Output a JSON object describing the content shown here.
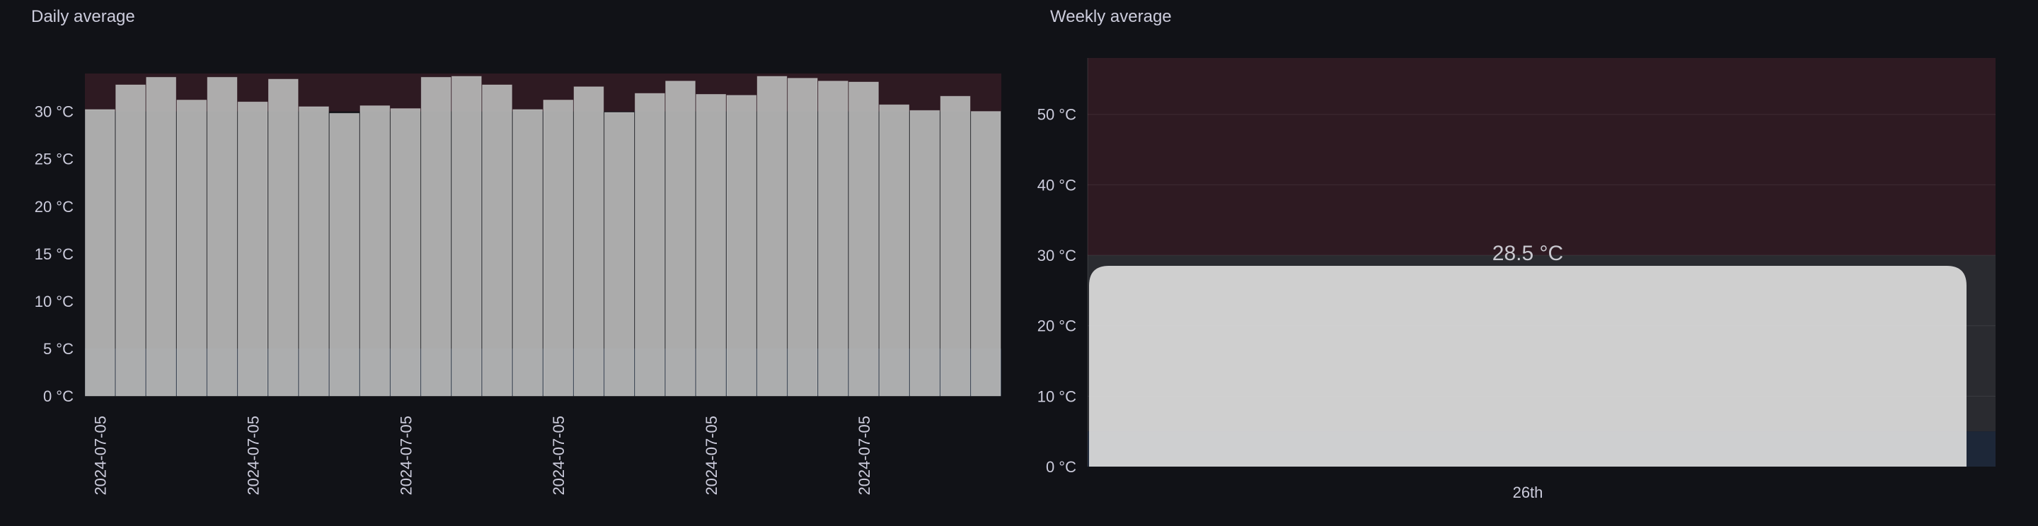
{
  "colors": {
    "background": "#111217",
    "bar_fill": "#b8b8b8",
    "bar_fill_weekly": "#d8d8d8",
    "threshold_hot": "#2e1a22",
    "threshold_cold": "#1d2738",
    "text": "#ccccdc"
  },
  "chart_data": [
    {
      "type": "bar",
      "title": "Daily average",
      "unit": "°C",
      "ylim": [
        0,
        34
      ],
      "yticks": [
        "0 °C",
        "5 °C",
        "10 °C",
        "15 °C",
        "20 °C",
        "25 °C",
        "30 °C"
      ],
      "ytick_values": [
        0,
        5,
        10,
        15,
        20,
        25,
        30
      ],
      "xtick_labels": [
        "2024-07-05",
        "2024-07-05",
        "2024-07-05",
        "2024-07-05",
        "2024-07-05",
        "2024-07-05"
      ],
      "xtick_every": 5,
      "thresholds": {
        "cold_below": 5,
        "hot_above": 30
      },
      "values": [
        30.2,
        32.8,
        33.6,
        31.2,
        33.6,
        31.0,
        33.4,
        30.5,
        29.8,
        30.6,
        30.3,
        33.6,
        33.7,
        32.8,
        30.2,
        31.2,
        32.6,
        29.9,
        31.9,
        33.2,
        31.8,
        31.7,
        33.7,
        33.5,
        33.2,
        33.1,
        30.7,
        30.1,
        31.6,
        30.0
      ],
      "grid": false,
      "legend": "none"
    },
    {
      "type": "bar",
      "title": "Weekly average",
      "unit": "°C",
      "ylim": [
        0,
        58
      ],
      "yticks": [
        "0 °C",
        "10 °C",
        "20 °C",
        "30 °C",
        "40 °C",
        "50 °C"
      ],
      "ytick_values": [
        0,
        10,
        20,
        30,
        40,
        50
      ],
      "categories": [
        "26th"
      ],
      "values": [
        28.5
      ],
      "value_labels": [
        "28.5 °C"
      ],
      "thresholds": {
        "cold_below": 5,
        "hot_above": 30
      },
      "grid": true,
      "legend": "none"
    }
  ]
}
